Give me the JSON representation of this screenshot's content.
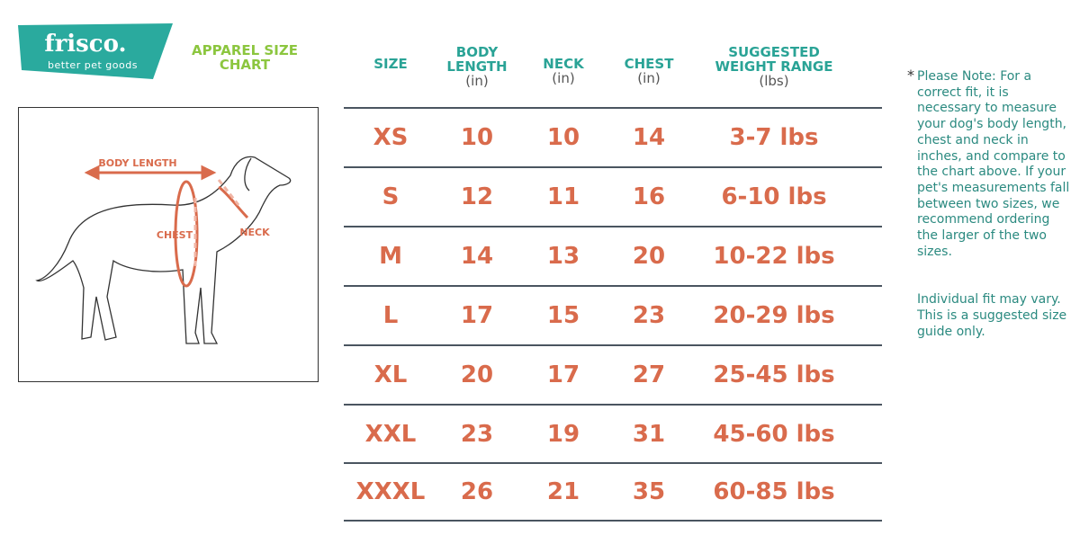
{
  "logo": {
    "brand": "frisco.",
    "tagline": "better pet goods",
    "color": "#2aaa9e"
  },
  "title": "APPAREL SIZE CHART",
  "diagram": {
    "body_length": "BODY LENGTH",
    "chest": "CHEST",
    "neck": "NECK"
  },
  "table": {
    "headers": [
      {
        "label": "SIZE",
        "unit": ""
      },
      {
        "label": "BODY LENGTH",
        "unit": "(in)"
      },
      {
        "label": "NECK",
        "unit": "(in)"
      },
      {
        "label": "CHEST",
        "unit": "(in)"
      },
      {
        "label": "SUGGESTED WEIGHT RANGE",
        "unit": "(lbs)"
      }
    ],
    "rows": [
      [
        "XS",
        "10",
        "10",
        "14",
        "3-7 lbs"
      ],
      [
        "S",
        "12",
        "11",
        "16",
        "6-10 lbs"
      ],
      [
        "M",
        "14",
        "13",
        "20",
        "10-22 lbs"
      ],
      [
        "L",
        "17",
        "15",
        "23",
        "20-29 lbs"
      ],
      [
        "XL",
        "20",
        "17",
        "27",
        "25-45 lbs"
      ],
      [
        "XXL",
        "23",
        "19",
        "31",
        "45-60 lbs"
      ],
      [
        "XXXL",
        "26",
        "21",
        "35",
        "60-85 lbs"
      ]
    ]
  },
  "note": {
    "star": "*",
    "p1": "Please Note: For a correct fit, it is necessary to measure your dog's body length, chest and neck in inches, and compare to the chart above. If your pet's measurements fall between two sizes, we recommend ordering the larger of the two sizes.",
    "p2": "Individual fit may vary. This is a suggested size guide only."
  },
  "colors": {
    "header": "#2aa396",
    "value": "#d96b4c",
    "title": "#8cc63f",
    "note": "#2b8a80"
  }
}
